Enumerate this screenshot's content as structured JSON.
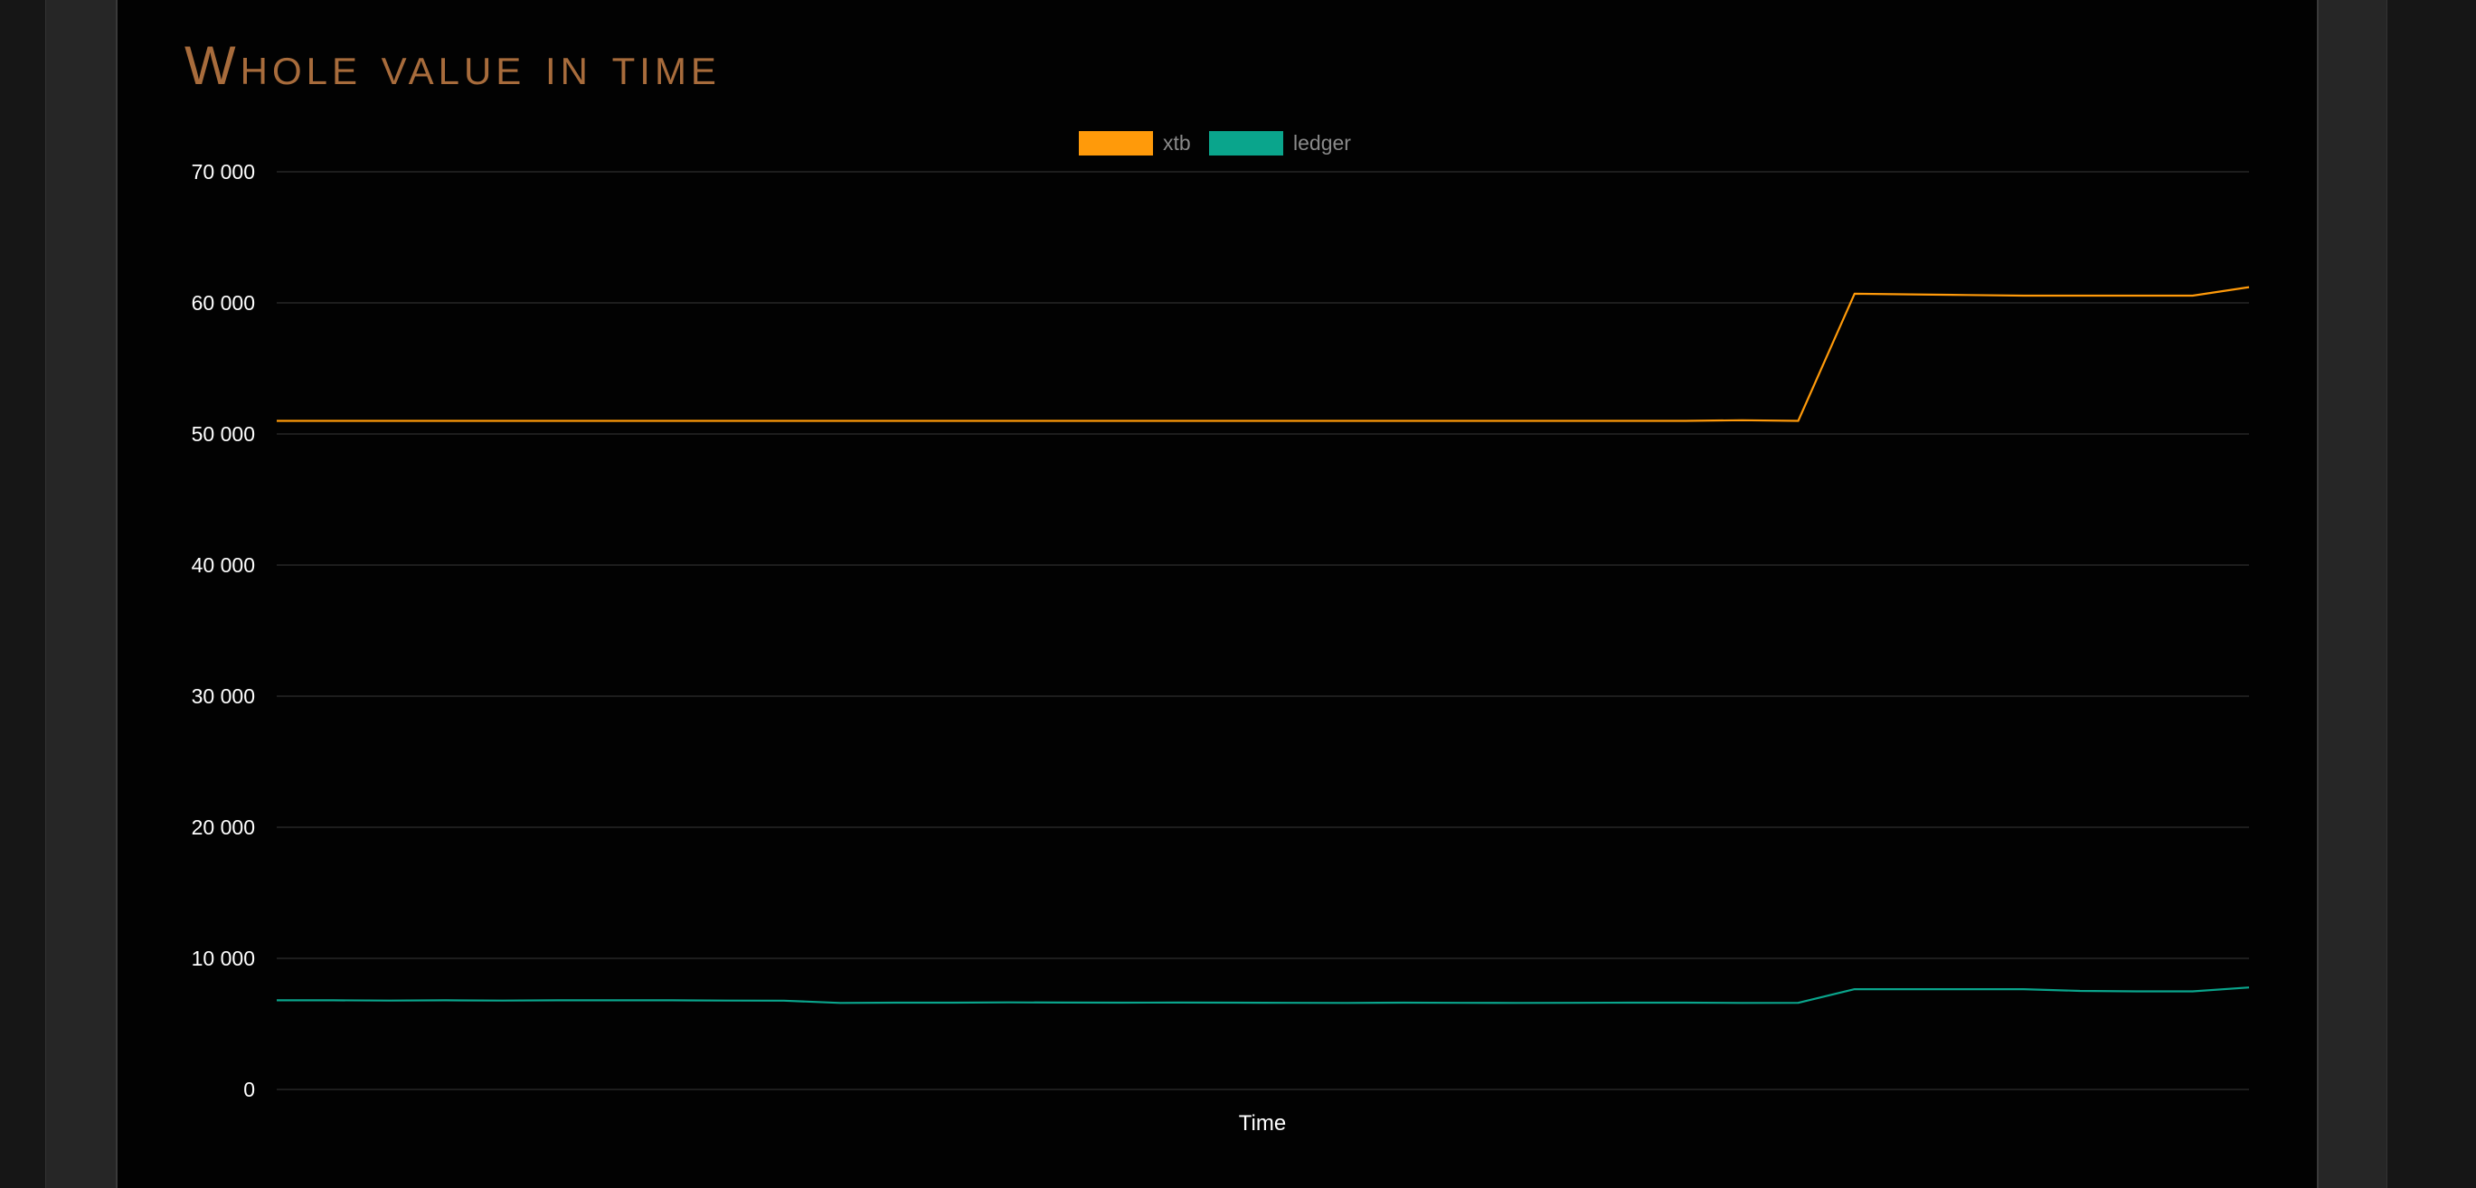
{
  "page": {
    "title": "Whole value in time"
  },
  "colors": {
    "xtb": "#ff9a0a",
    "ledger": "#0aa58c",
    "grid": "#262626",
    "tick_text": "#ffffff",
    "legend_text": "#8a8a8a",
    "title": "#a86c3c"
  },
  "chart_data": {
    "type": "line",
    "title": "",
    "xlabel": "Time",
    "ylabel": "",
    "ylim": [
      0,
      70000
    ],
    "yticks": [
      0,
      10000,
      20000,
      30000,
      40000,
      50000,
      60000,
      70000
    ],
    "ytick_labels": [
      "0",
      "10 000",
      "20 000",
      "30 000",
      "40 000",
      "50 000",
      "60 000",
      "70 000"
    ],
    "grid": true,
    "legend": "top-center",
    "x": [
      0,
      1,
      2,
      3,
      4,
      5,
      6,
      7,
      8,
      9,
      10,
      11,
      12,
      13,
      14,
      15,
      16,
      17,
      18,
      19,
      20,
      21,
      22,
      23,
      24,
      25,
      26,
      27,
      28,
      29,
      30,
      31,
      32,
      33,
      34,
      35
    ],
    "series": [
      {
        "name": "xtb",
        "color": "#ff9a0a",
        "values": [
          51000,
          51000,
          51000,
          51000,
          51000,
          51000,
          51000,
          51000,
          51000,
          51000,
          51000,
          51000,
          51000,
          51000,
          51000,
          51000,
          51000,
          51000,
          51000,
          51000,
          51000,
          51000,
          51000,
          51000,
          51000,
          51000,
          51050,
          51000,
          60700,
          60650,
          60600,
          60550,
          60550,
          60550,
          60550,
          61200
        ]
      },
      {
        "name": "ledger",
        "color": "#0aa58c",
        "values": [
          6800,
          6800,
          6780,
          6800,
          6780,
          6800,
          6800,
          6800,
          6780,
          6770,
          6600,
          6620,
          6620,
          6640,
          6630,
          6620,
          6630,
          6620,
          6610,
          6600,
          6620,
          6610,
          6600,
          6610,
          6620,
          6620,
          6600,
          6610,
          7650,
          7650,
          7650,
          7650,
          7520,
          7480,
          7480,
          7780
        ]
      }
    ]
  }
}
